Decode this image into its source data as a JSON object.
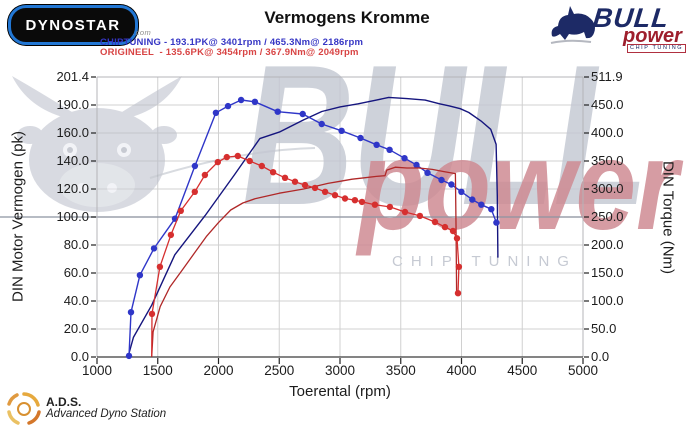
{
  "header": {
    "logo_text": "DYNOSTAR",
    "logo_suffix": ".com",
    "title": "Vermogens Kromme"
  },
  "bull_logo": {
    "word1": "BULL",
    "word2": "power",
    "word3": "CHIP TUNING"
  },
  "legend": {
    "lines": [
      {
        "name": "CHIPTUNING",
        "text": "CHIPTUNING - 193.1PK@ 3401rpm / 465.3Nm@ 2186rpm",
        "color": "#3636c4"
      },
      {
        "name": "ORIGINEEL",
        "text": "ORIGINEEL  - 135.6PK@ 3454rpm / 367.9Nm@ 2049rpm",
        "color": "#d84444"
      }
    ]
  },
  "watermark": {
    "big": "BULL",
    "word": "power",
    "sub": "CHIP TUNING"
  },
  "footer": {
    "abbr": "A.D.S.",
    "name": "Advanced Dyno Station"
  },
  "chart_data": {
    "type": "line",
    "title": "Vermogens Kromme",
    "xlabel": "Toerental (rpm)",
    "ylabel_left": "DIN Motor Vermogen (pk)",
    "ylabel_right": "DIN Torque (Nm)",
    "x_range": [
      1000,
      5000
    ],
    "x_ticks": [
      "1000",
      "1500",
      "2000",
      "2500",
      "3000",
      "3500",
      "4000",
      "4500",
      "5000"
    ],
    "y_left_ticks": {
      "values": [
        0,
        20,
        40,
        60,
        80,
        100,
        120,
        140,
        160,
        190,
        201.4
      ],
      "labels": [
        "0.0",
        "20.0",
        "40.0",
        "60.0",
        "80.0",
        "100.0",
        "120.0",
        "140.0",
        "160.0",
        "190.0",
        "201.4"
      ]
    },
    "y_right_ticks": {
      "values": [
        0,
        50,
        100,
        150,
        200,
        250,
        300,
        350,
        400,
        450,
        511.9
      ],
      "labels": [
        "0.0",
        "50.0",
        "100.0",
        "150.0",
        "200.0",
        "250.0",
        "300.0",
        "350.0",
        "400.0",
        "450.0",
        "511.9"
      ]
    },
    "grid": true,
    "legend_position": "top-left",
    "peaks": {
      "chiptuning": {
        "power_pk": 193.1,
        "power_rpm": 3401,
        "torque_nm": 465.3,
        "torque_rpm": 2186
      },
      "origineel": {
        "power_pk": 135.6,
        "power_rpm": 3454,
        "torque_nm": 367.9,
        "torque_rpm": 2049
      }
    },
    "series": [
      {
        "id": "chip-power",
        "legend": "CHIPTUNING",
        "unit": "pk",
        "axis": "left",
        "color": "#15157e",
        "width": 1.4,
        "markers": false,
        "marker_from": 0,
        "points": [
          [
            1255,
            0
          ],
          [
            1300,
            14
          ],
          [
            1450,
            37
          ],
          [
            1640,
            73
          ],
          [
            1890,
            101
          ],
          [
            2130,
            130
          ],
          [
            2340,
            156
          ],
          [
            2500,
            161
          ],
          [
            2700,
            174
          ],
          [
            2850,
            183
          ],
          [
            3000,
            188
          ],
          [
            3150,
            190.5
          ],
          [
            3300,
            192
          ],
          [
            3401,
            193.1
          ],
          [
            3550,
            192.6
          ],
          [
            3700,
            192
          ],
          [
            3820,
            190.5
          ],
          [
            3900,
            189
          ],
          [
            3990,
            186
          ],
          [
            4060,
            182
          ],
          [
            4160,
            173
          ],
          [
            4240,
            164
          ],
          [
            4285,
            152
          ],
          [
            4295,
            115
          ],
          [
            4300,
            71
          ]
        ]
      },
      {
        "id": "chip-torque",
        "legend": "CHIPTUNING",
        "unit": "Nm",
        "axis": "right",
        "color": "#2f36c8",
        "width": 1.4,
        "markers": true,
        "marker_from": 0,
        "points": [
          [
            1263,
            2
          ],
          [
            1280,
            80
          ],
          [
            1353,
            146
          ],
          [
            1469,
            194
          ],
          [
            1642,
            247
          ],
          [
            1806,
            341
          ],
          [
            1979,
            436
          ],
          [
            2078,
            448
          ],
          [
            2186,
            461
          ],
          [
            2300,
            457
          ],
          [
            2487,
            438
          ],
          [
            2693,
            434
          ],
          [
            2849,
            416
          ],
          [
            3013,
            404
          ],
          [
            3169,
            391
          ],
          [
            3301,
            379
          ],
          [
            3408,
            370
          ],
          [
            3531,
            355
          ],
          [
            3630,
            343
          ],
          [
            3720,
            329
          ],
          [
            3835,
            316
          ],
          [
            3917,
            308
          ],
          [
            3999,
            295
          ],
          [
            4089,
            281
          ],
          [
            4163,
            272
          ],
          [
            4245,
            264
          ],
          [
            4287,
            240
          ]
        ]
      },
      {
        "id": "orig-power",
        "legend": "ORIGINEEL",
        "unit": "pk",
        "axis": "left",
        "color": "#b02828",
        "width": 1.3,
        "markers": false,
        "marker_from": 0,
        "points": [
          [
            1450,
            0
          ],
          [
            1462,
            18
          ],
          [
            1520,
            36
          ],
          [
            1600,
            50
          ],
          [
            1700,
            62
          ],
          [
            1800,
            74
          ],
          [
            1900,
            86
          ],
          [
            2000,
            96
          ],
          [
            2100,
            105
          ],
          [
            2200,
            110
          ],
          [
            2300,
            113
          ],
          [
            2400,
            115
          ],
          [
            2500,
            117
          ],
          [
            2600,
            118.5
          ],
          [
            2700,
            120
          ],
          [
            2800,
            122
          ],
          [
            2900,
            124
          ],
          [
            3000,
            125.5
          ],
          [
            3100,
            127
          ],
          [
            3200,
            128
          ],
          [
            3300,
            129
          ],
          [
            3370,
            129.5
          ],
          [
            3385,
            133.5
          ],
          [
            3454,
            135.6
          ],
          [
            3550,
            135
          ],
          [
            3650,
            135
          ],
          [
            3760,
            134
          ],
          [
            3850,
            132.5
          ],
          [
            3950,
            131
          ],
          [
            3955,
            95
          ],
          [
            3960,
            47
          ]
        ]
      },
      {
        "id": "orig-torque",
        "legend": "ORIGINEEL",
        "unit": "Nm",
        "axis": "right",
        "color": "#d62f2f",
        "width": 1.3,
        "markers": true,
        "marker_from": 1,
        "points": [
          [
            1450,
            2
          ],
          [
            1453,
            77
          ],
          [
            1518,
            161
          ],
          [
            1608,
            218
          ],
          [
            1690,
            261
          ],
          [
            1805,
            295
          ],
          [
            1888,
            325
          ],
          [
            1994,
            348
          ],
          [
            2068,
            357
          ],
          [
            2159,
            359
          ],
          [
            2257,
            350
          ],
          [
            2356,
            341
          ],
          [
            2449,
            330
          ],
          [
            2547,
            320
          ],
          [
            2630,
            313
          ],
          [
            2712,
            307
          ],
          [
            2794,
            302
          ],
          [
            2877,
            295
          ],
          [
            2959,
            289
          ],
          [
            3041,
            283
          ],
          [
            3123,
            280
          ],
          [
            3181,
            277
          ],
          [
            3287,
            272
          ],
          [
            3411,
            268
          ],
          [
            3535,
            259
          ],
          [
            3658,
            252
          ],
          [
            3782,
            241
          ],
          [
            3864,
            232
          ],
          [
            3930,
            225
          ],
          [
            3963,
            212
          ],
          [
            3979,
            161
          ],
          [
            3971,
            114
          ]
        ]
      }
    ]
  }
}
